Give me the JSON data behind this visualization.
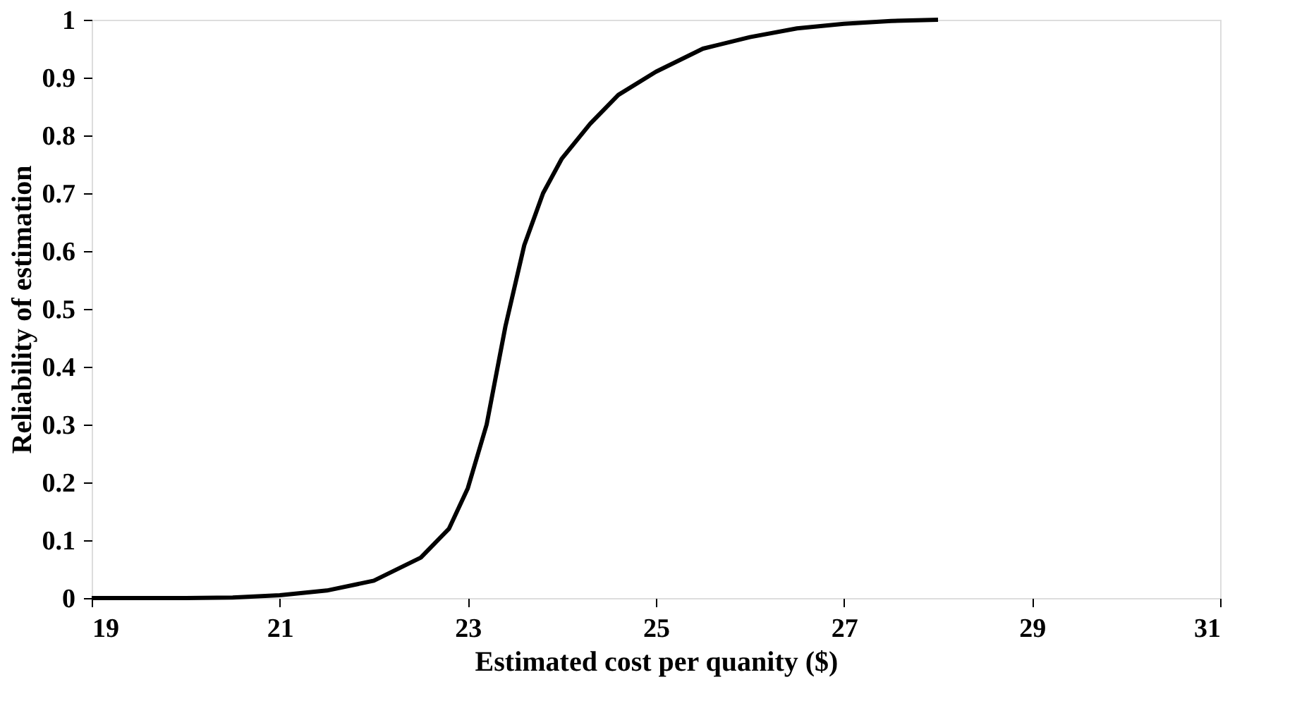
{
  "chart_data": {
    "type": "line",
    "xlabel": "Estimated cost per quanity ($)",
    "ylabel": "Reliability of estimation",
    "x": [
      19,
      20,
      20.5,
      21,
      21.5,
      22,
      22.5,
      22.8,
      23,
      23.2,
      23.4,
      23.6,
      23.8,
      24,
      24.3,
      24.6,
      25,
      25.5,
      26,
      26.5,
      27,
      27.5,
      28
    ],
    "series": [
      {
        "color": "#000000",
        "values": [
          0,
          0,
          0.001,
          0.005,
          0.013,
          0.03,
          0.07,
          0.12,
          0.19,
          0.3,
          0.47,
          0.61,
          0.7,
          0.76,
          0.82,
          0.87,
          0.91,
          0.95,
          0.97,
          0.985,
          0.993,
          0.998,
          1
        ]
      }
    ],
    "xlim": [
      19,
      31
    ],
    "xticks": [
      19,
      21,
      23,
      25,
      27,
      29,
      31
    ],
    "ylim": [
      0,
      1
    ],
    "yticks": [
      0,
      0.1,
      0.2,
      0.3,
      0.4,
      0.5,
      0.6,
      0.7,
      0.8,
      0.9,
      1
    ],
    "grid": false,
    "legend": false,
    "marker": "none",
    "line_style": "solid"
  }
}
